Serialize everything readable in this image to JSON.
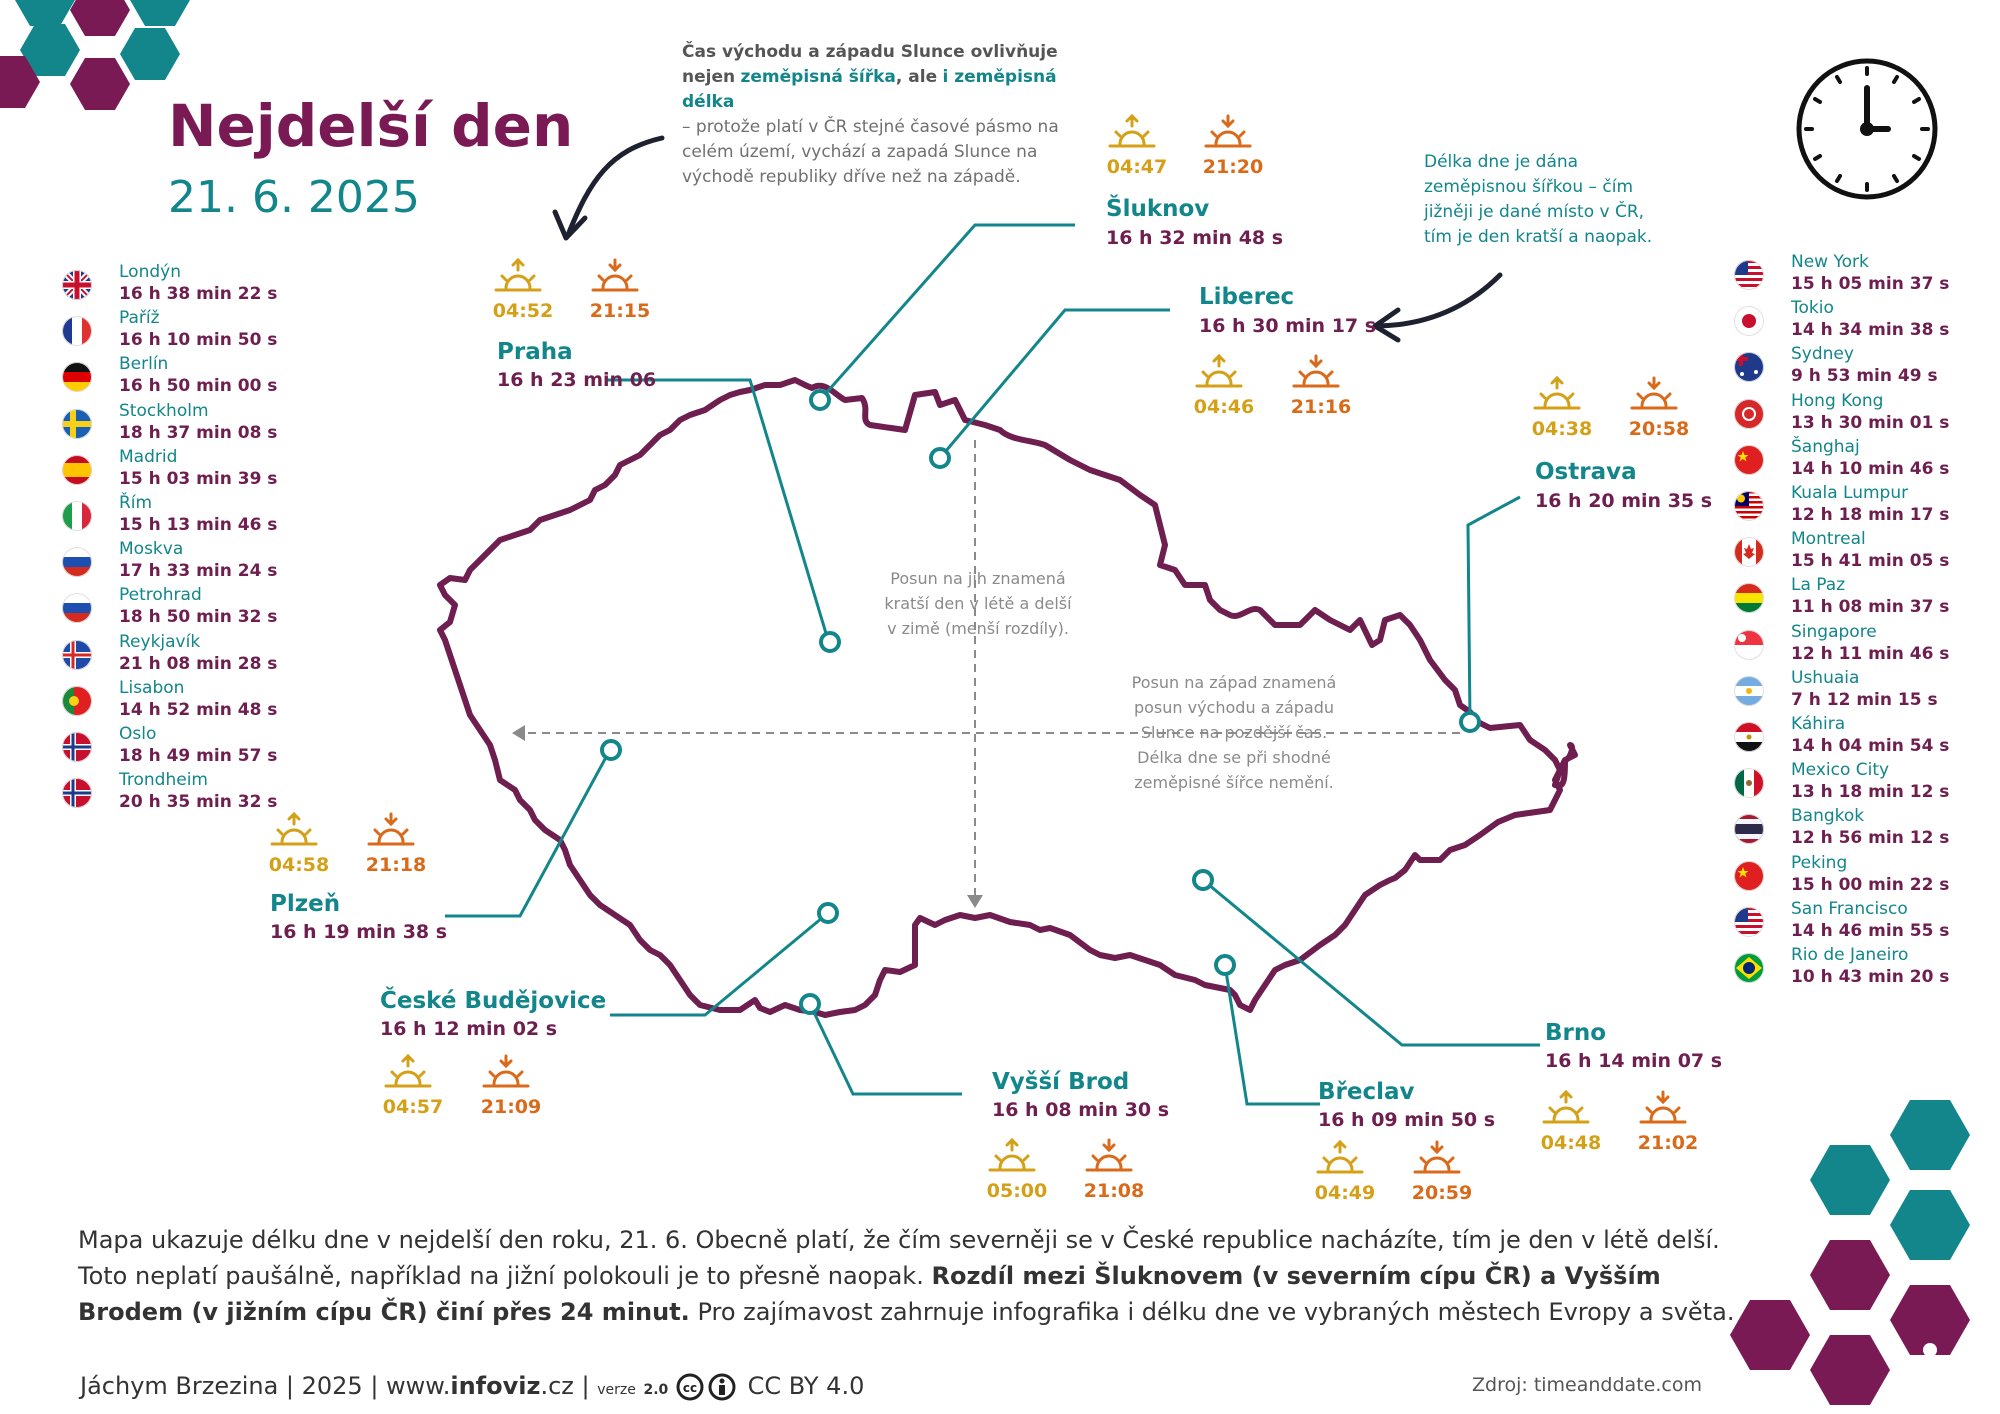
{
  "title": "Nejdelší den",
  "date": "21. 6. 2025",
  "note_top": {
    "p1": "Čas východu a západu Slunce ovlivňuje",
    "p2a": "nejen",
    "p2b": "zeměpisná šířka",
    "p2c": ", ale",
    "p2d": "i zeměpisná délka",
    "p3": "– protože platí v ČR stejné časové pásmo na",
    "p4": "celém území, vychází a zapadá Slunce na",
    "p5": "východě republiky dříve než na západě."
  },
  "note_right": {
    "l1": "Délka dne je dána",
    "l2": "zeměpisnou šířkou – čím",
    "l3": "jižněji je dané místo v ČR,",
    "l4": "tím je den kratší a naopak."
  },
  "map_note_south": {
    "l1": "Posun na jih znamená",
    "l2": "kratší den v létě a delší",
    "l3": "v zimě (menší rozdíly)."
  },
  "map_note_west": {
    "l1": "Posun na západ znamená",
    "l2": "posun východu a západu",
    "l3": "Slunce na pozdější čas.",
    "l4": "Délka dne se při shodné",
    "l5": "zeměpisné šířce nemění."
  },
  "cz_cities": {
    "sluknov": {
      "name": "Šluknov",
      "duration": "16 h 32 min 48 s",
      "sunrise": "04:47",
      "sunset": "21:20"
    },
    "liberec": {
      "name": "Liberec",
      "duration": "16 h 30 min 17 s",
      "sunrise": "04:46",
      "sunset": "21:16"
    },
    "praha": {
      "name": "Praha",
      "duration": "16 h 23 min 06",
      "sunrise": "04:52",
      "sunset": "21:15"
    },
    "ostrava": {
      "name": "Ostrava",
      "duration": "16 h 20 min 35 s",
      "sunrise": "04:38",
      "sunset": "20:58"
    },
    "plzen": {
      "name": "Plzeň",
      "duration": "16 h 19 min 38 s",
      "sunrise": "04:58",
      "sunset": "21:18"
    },
    "budejovice": {
      "name": "České Budějovice",
      "duration": "16 h 12 min 02 s",
      "sunrise": "04:57",
      "sunset": "21:09"
    },
    "vyssi_brod": {
      "name": "Vyšší Brod",
      "duration": "16 h 08 min 30 s",
      "sunrise": "05:00",
      "sunset": "21:08"
    },
    "breclav": {
      "name": "Břeclav",
      "duration": "16 h 09 min 50 s",
      "sunrise": "04:49",
      "sunset": "20:59"
    },
    "brno": {
      "name": "Brno",
      "duration": "16 h 14 min 07 s",
      "sunrise": "04:48",
      "sunset": "21:02"
    }
  },
  "europe": [
    {
      "name": "Londýn",
      "duration": "16 h 38 min 22 s",
      "flag": "uk"
    },
    {
      "name": "Paříž",
      "duration": "16 h 10 min 50 s",
      "flag": "fr"
    },
    {
      "name": "Berlín",
      "duration": "16 h 50 min 00 s",
      "flag": "de"
    },
    {
      "name": "Stockholm",
      "duration": "18 h 37 min 08 s",
      "flag": "se"
    },
    {
      "name": "Madrid",
      "duration": "15 h 03 min 39 s",
      "flag": "es"
    },
    {
      "name": "Řím",
      "duration": "15 h 13 min 46 s",
      "flag": "it"
    },
    {
      "name": "Moskva",
      "duration": "17 h 33 min 24 s",
      "flag": "ru"
    },
    {
      "name": "Petrohrad",
      "duration": "18 h 50 min 32 s",
      "flag": "ru"
    },
    {
      "name": "Reykjavík",
      "duration": "21 h 08 min 28 s",
      "flag": "is"
    },
    {
      "name": "Lisabon",
      "duration": "14 h 52 min 48 s",
      "flag": "pt"
    },
    {
      "name": "Oslo",
      "duration": "18 h 49 min 57 s",
      "flag": "no"
    },
    {
      "name": "Trondheim",
      "duration": "20 h 35 min 32 s",
      "flag": "no"
    }
  ],
  "world": [
    {
      "name": "New York",
      "duration": "15 h 05 min 37 s",
      "flag": "us"
    },
    {
      "name": "Tokio",
      "duration": "14 h 34 min 38 s",
      "flag": "jp"
    },
    {
      "name": "Sydney",
      "duration": "9 h 53 min 49 s",
      "flag": "au"
    },
    {
      "name": "Hong Kong",
      "duration": "13 h 30 min 01 s",
      "flag": "hk"
    },
    {
      "name": "Šanghaj",
      "duration": "14 h 10 min 46 s",
      "flag": "cn"
    },
    {
      "name": "Kuala Lumpur",
      "duration": "12 h 18 min 17 s",
      "flag": "my"
    },
    {
      "name": "Montreal",
      "duration": "15 h 41 min 05 s",
      "flag": "ca"
    },
    {
      "name": "La Paz",
      "duration": "11 h 08 min 37 s",
      "flag": "bo"
    },
    {
      "name": "Singapore",
      "duration": "12 h 11 min 46 s",
      "flag": "sg"
    },
    {
      "name": "Ushuaia",
      "duration": "7 h 12 min 15 s",
      "flag": "ar"
    },
    {
      "name": "Káhira",
      "duration": "14 h 04 min 54 s",
      "flag": "eg"
    },
    {
      "name": "Mexico City",
      "duration": "13 h 18 min 12 s",
      "flag": "mx"
    },
    {
      "name": "Bangkok",
      "duration": "12 h 56 min 12 s",
      "flag": "th"
    },
    {
      "name": "Peking",
      "duration": "15 h 00 min 22 s",
      "flag": "cn"
    },
    {
      "name": "San Francisco",
      "duration": "14 h 46 min 55 s",
      "flag": "us"
    },
    {
      "name": "Rio de Janeiro",
      "duration": "10 h 43 min 20 s",
      "flag": "br"
    }
  ],
  "bottom": {
    "t1": "Mapa ukazuje délku dne v nejdelší den roku, 21. 6. Obecně platí, že čím severněji se v České republice nacházíte, tím je den v létě delší.",
    "t2": "Toto neplatí paušálně, například na jižní polokouli je to přesně naopak.",
    "t3": "Rozdíl mezi Šluknovem (v severním cípu ČR) a Vyšším Brodem (v jižním cípu ČR) činí přes 24 minut.",
    "t4": "Pro zajímavost zahrnuje infografika i délku dne ve vybraných městech Evropy a světa."
  },
  "footer": {
    "author": "Jáchym Brzezina | 2025 | www.",
    "site_bold": "infoviz",
    "site_tld": ".cz |",
    "version_label": "verze",
    "version": "2.0",
    "license": "CC BY 4.0"
  },
  "source": "Zdroj: timeanddate.com",
  "colors": {
    "teal": "#12868a",
    "plum": "#7a1a55",
    "sunrise": "#d4a017",
    "sunset": "#d96a1a"
  }
}
